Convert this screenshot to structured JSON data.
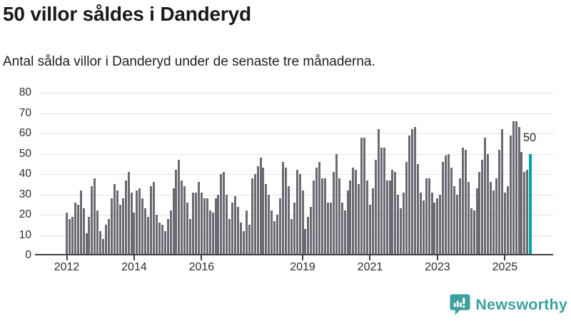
{
  "header": {
    "title": "50 villor såldes i Danderyd",
    "subtitle": "Antal sålda villor i Danderyd under de senaste tre månaderna."
  },
  "chart_data": {
    "type": "bar",
    "title": "50 villor såldes i Danderyd",
    "subtitle": "Antal sålda villor i Danderyd under de senaste tre månaderna.",
    "frequency": "monthly",
    "x_start_month": "2012-01",
    "values": [
      21,
      18,
      19,
      26,
      25,
      32,
      23,
      11,
      19,
      34,
      38,
      22,
      12,
      8,
      15,
      18,
      28,
      35,
      32,
      25,
      28,
      37,
      41,
      31,
      21,
      32,
      33,
      28,
      23,
      19,
      34,
      36,
      20,
      16,
      15,
      12,
      18,
      22,
      33,
      42,
      47,
      37,
      34,
      26,
      18,
      31,
      31,
      36,
      31,
      28,
      28,
      22,
      21,
      28,
      30,
      40,
      41,
      30,
      18,
      26,
      29,
      24,
      16,
      12,
      22,
      15,
      38,
      40,
      44,
      48,
      43,
      35,
      30,
      22,
      17,
      20,
      28,
      46,
      43,
      34,
      18,
      26,
      42,
      40,
      32,
      13,
      19,
      24,
      37,
      43,
      46,
      38,
      38,
      26,
      26,
      41,
      50,
      38,
      26,
      22,
      32,
      37,
      43,
      42,
      35,
      58,
      58,
      37,
      25,
      33,
      47,
      62,
      53,
      53,
      37,
      37,
      42,
      41,
      30,
      23,
      31,
      46,
      59,
      62,
      63,
      45,
      31,
      27,
      38,
      38,
      31,
      26,
      28,
      30,
      46,
      49,
      50,
      43,
      34,
      30,
      38,
      53,
      52,
      36,
      23,
      22,
      33,
      41,
      47,
      58,
      50,
      36,
      32,
      38,
      52,
      62,
      31,
      34,
      59,
      66,
      66,
      63,
      51,
      41,
      42,
      50
    ],
    "highlight_last_bar": true,
    "last_value_label": "50",
    "y_ticks": [
      0,
      10,
      20,
      30,
      40,
      50,
      60,
      70,
      80
    ],
    "ylim": [
      0,
      80
    ],
    "x_tick_years": [
      2012,
      2014,
      2016,
      2019,
      2021,
      2023,
      2025
    ],
    "grid": "horizontal",
    "legend": "none",
    "bar_color": "#6a6a72",
    "highlight_color": "#00a2a4",
    "ylabel": "",
    "xlabel": ""
  },
  "annotation": {
    "last_value": "50"
  },
  "footer": {
    "brand": "Newsworthy",
    "logo_icon": "bar-chart-speech-bubble-icon",
    "brand_color": "#3ba19e"
  }
}
